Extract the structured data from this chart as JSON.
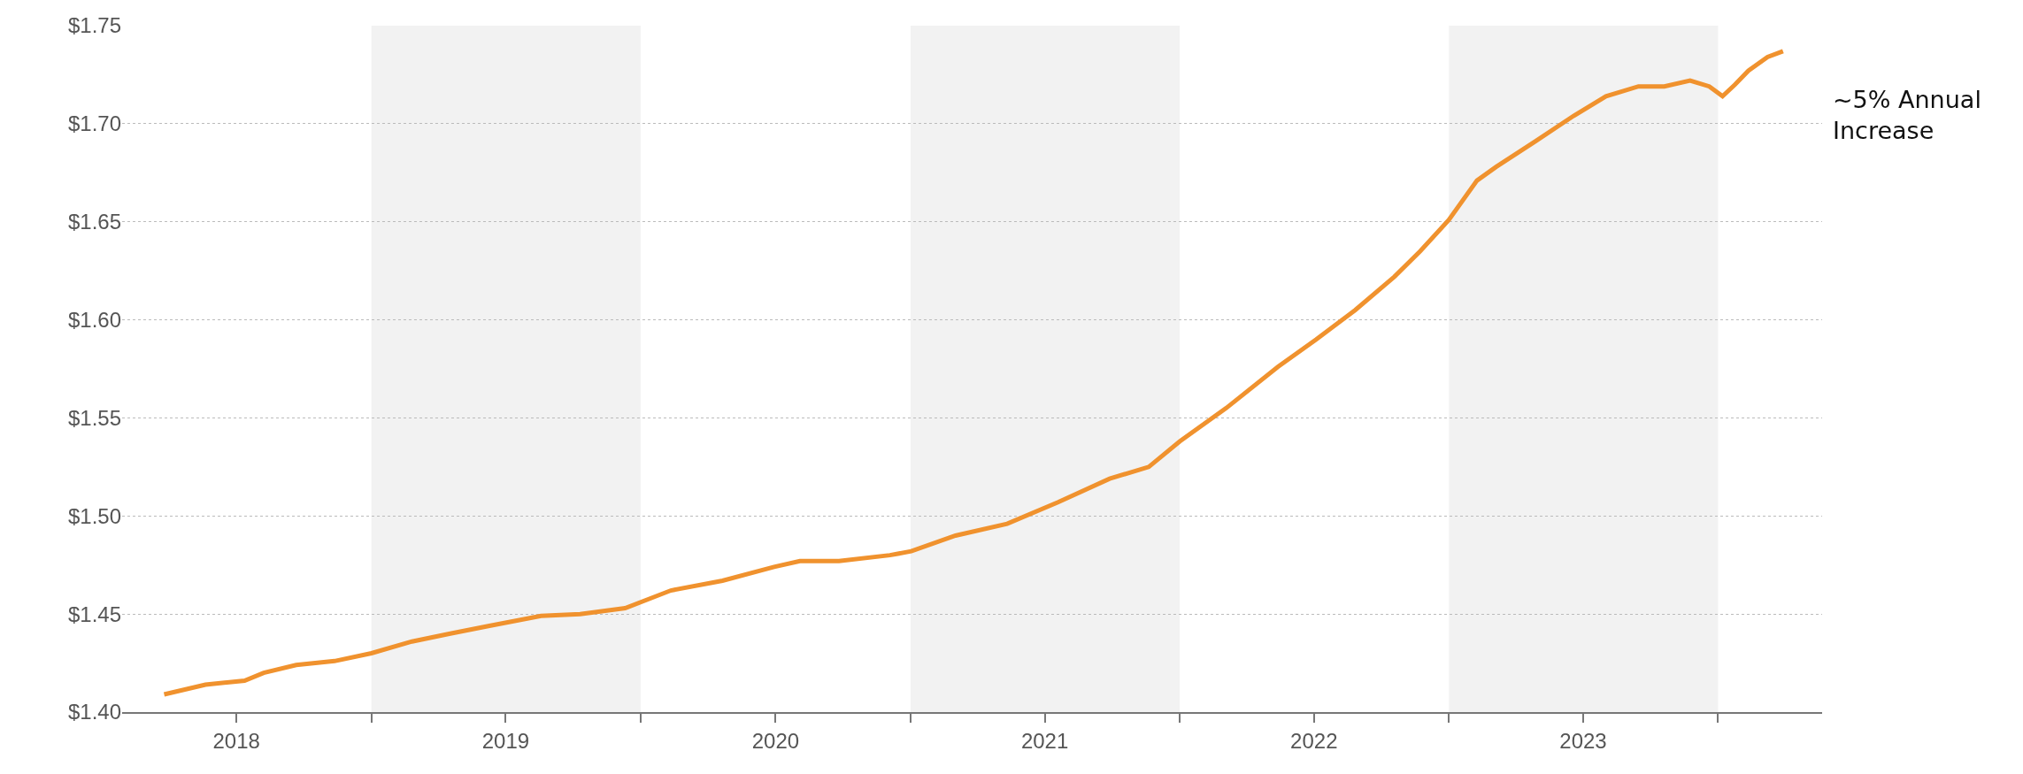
{
  "chart_data": {
    "type": "line",
    "x": [
      "2018-03-26",
      "2018-05-21",
      "2018-07-13",
      "2018-08-08",
      "2018-09-21",
      "2018-11-12",
      "2019-01-01",
      "2019-02-25",
      "2019-04-18",
      "2019-06-10",
      "2019-08-19",
      "2019-10-11",
      "2019-12-11",
      "2020-02-11",
      "2020-04-21",
      "2020-06-30",
      "2020-08-04",
      "2020-09-26",
      "2020-12-04",
      "2021-01-02",
      "2021-03-03",
      "2021-05-12",
      "2021-07-20",
      "2021-09-28",
      "2021-11-20",
      "2022-01-01",
      "2022-03-05",
      "2022-05-14",
      "2022-07-05",
      "2022-08-27",
      "2022-10-19",
      "2022-11-23",
      "2023-01-01",
      "2023-02-08",
      "2023-03-06",
      "2023-04-28",
      "2023-06-19",
      "2023-08-02",
      "2023-09-15",
      "2023-10-20",
      "2023-11-24",
      "2023-12-20",
      "2024-01-07",
      "2024-01-24",
      "2024-02-11",
      "2024-03-08",
      "2024-03-29"
    ],
    "series": [
      {
        "color": "#f0922e",
        "values": [
          1.409,
          1.414,
          1.416,
          1.42,
          1.424,
          1.426,
          1.43,
          1.436,
          1.44,
          1.444,
          1.449,
          1.45,
          1.453,
          1.462,
          1.467,
          1.474,
          1.477,
          1.477,
          1.48,
          1.482,
          1.49,
          1.496,
          1.507,
          1.519,
          1.525,
          1.538,
          1.555,
          1.576,
          1.59,
          1.605,
          1.622,
          1.635,
          1.651,
          1.671,
          1.678,
          1.691,
          1.704,
          1.714,
          1.719,
          1.719,
          1.722,
          1.719,
          1.714,
          1.72,
          1.727,
          1.734,
          1.737
        ]
      }
    ],
    "xlim": [
      "2018-01-28",
      "2024-05-21"
    ],
    "xticks": [
      {
        "value": "2018-07-02",
        "label": "2018"
      },
      {
        "value": "2019-01-01",
        "label": null
      },
      {
        "value": "2019-07-02",
        "label": "2019"
      },
      {
        "value": "2020-01-01",
        "label": null
      },
      {
        "value": "2020-07-02",
        "label": "2020"
      },
      {
        "value": "2021-01-01",
        "label": null
      },
      {
        "value": "2021-07-02",
        "label": "2021"
      },
      {
        "value": "2022-01-01",
        "label": null
      },
      {
        "value": "2022-07-02",
        "label": "2022"
      },
      {
        "value": "2023-01-01",
        "label": null
      },
      {
        "value": "2023-07-02",
        "label": "2023"
      },
      {
        "value": "2024-01-01",
        "label": null
      }
    ],
    "ylim": [
      1.4,
      1.75
    ],
    "yticks": [
      {
        "value": 1.4,
        "label": "$1.40"
      },
      {
        "value": 1.45,
        "label": "$1.45"
      },
      {
        "value": 1.5,
        "label": "$1.50"
      },
      {
        "value": 1.55,
        "label": "$1.55"
      },
      {
        "value": 1.6,
        "label": "$1.60"
      },
      {
        "value": 1.65,
        "label": "$1.65"
      },
      {
        "value": 1.7,
        "label": "$1.70"
      },
      {
        "value": 1.75,
        "label": "$1.75"
      }
    ],
    "grid": "y",
    "bands": [
      {
        "axis": "x",
        "from": "2019-01-01",
        "to": "2020-01-01",
        "color": "#f2f2f2"
      },
      {
        "axis": "x",
        "from": "2021-01-01",
        "to": "2022-01-01",
        "color": "#f2f2f2"
      },
      {
        "axis": "x",
        "from": "2023-01-01",
        "to": "2024-01-01",
        "color": "#f2f2f2"
      }
    ],
    "annotations": [
      "~5% Annual Increase"
    ]
  }
}
